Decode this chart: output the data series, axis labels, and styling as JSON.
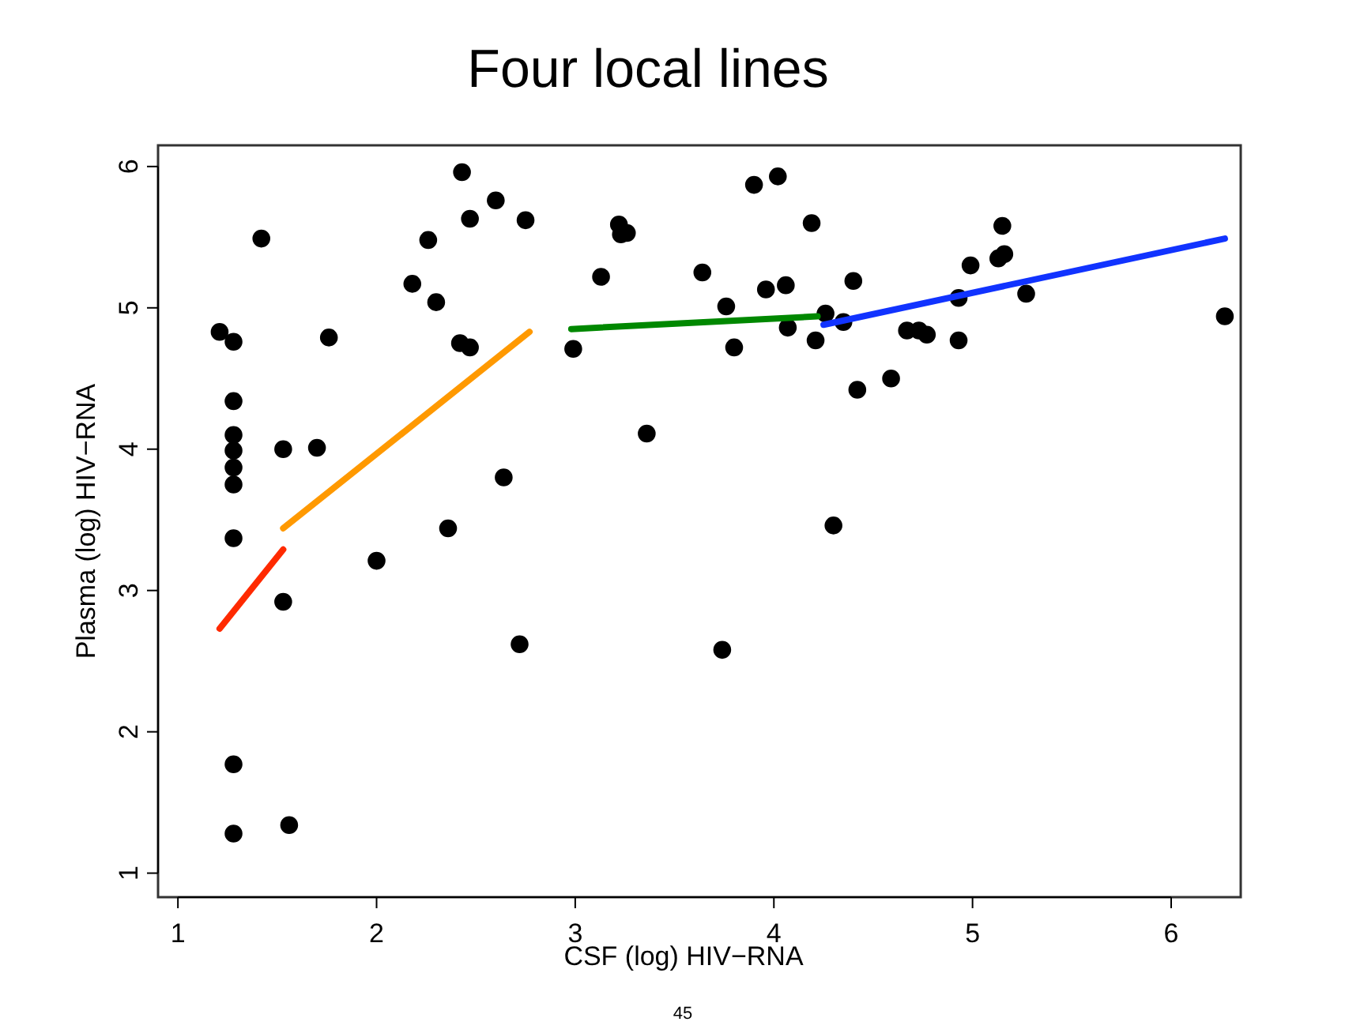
{
  "chart_data": {
    "type": "scatter",
    "title": "Four local lines",
    "xlabel": "CSF (log) HIV−RNA",
    "ylabel": "Plasma (log) HIV−RNA",
    "annotations": [
      "45"
    ],
    "xlim": [
      0.9,
      6.35
    ],
    "ylim": [
      0.83,
      6.15
    ],
    "xticks": [
      1,
      2,
      3,
      4,
      5,
      6
    ],
    "yticks": [
      1,
      2,
      3,
      4,
      5,
      6
    ],
    "grid": false,
    "series": [
      {
        "marker": "circle",
        "color": "#000000",
        "x": [
          1.21,
          1.28,
          1.28,
          1.28,
          1.28,
          1.28,
          1.28,
          1.28,
          1.28,
          1.28,
          1.42,
          1.53,
          1.53,
          1.56,
          1.7,
          1.76,
          2.0,
          2.18,
          2.26,
          2.3,
          2.36,
          2.43,
          2.42,
          2.47,
          2.47,
          2.6,
          2.64,
          2.72,
          2.75,
          2.99,
          3.13,
          3.22,
          3.23,
          3.26,
          3.36,
          3.64,
          3.74,
          3.76,
          3.8,
          3.9,
          3.96,
          4.02,
          4.06,
          4.07,
          4.19,
          4.21,
          4.26,
          4.3,
          4.35,
          4.4,
          4.42,
          4.59,
          4.67,
          4.73,
          4.77,
          4.93,
          4.93,
          4.99,
          5.13,
          5.16,
          5.15,
          5.27,
          6.27
        ],
        "values": [
          4.83,
          4.76,
          4.34,
          4.1,
          3.99,
          3.87,
          3.75,
          3.37,
          1.77,
          1.28,
          5.49,
          4.0,
          2.92,
          1.34,
          4.01,
          4.79,
          3.21,
          5.17,
          5.48,
          5.04,
          3.44,
          5.96,
          4.75,
          4.72,
          5.63,
          5.76,
          3.8,
          2.62,
          5.62,
          4.71,
          5.22,
          5.59,
          5.52,
          5.53,
          4.11,
          5.25,
          2.58,
          5.01,
          4.72,
          5.87,
          5.13,
          5.93,
          5.16,
          4.86,
          5.6,
          4.77,
          4.96,
          3.46,
          4.9,
          5.19,
          4.42,
          4.5,
          4.84,
          4.84,
          4.81,
          4.77,
          5.07,
          5.3,
          5.35,
          5.38,
          5.58,
          5.1,
          4.94
        ]
      },
      {
        "type": "line",
        "color": "#ff2a00",
        "x": [
          1.21,
          1.53
        ],
        "values": [
          2.73,
          3.29
        ]
      },
      {
        "type": "line",
        "color": "#ff9900",
        "x": [
          1.53,
          2.77
        ],
        "values": [
          3.44,
          4.83
        ]
      },
      {
        "type": "line",
        "color": "#008800",
        "x": [
          2.98,
          4.22
        ],
        "values": [
          4.85,
          4.94
        ]
      },
      {
        "type": "line",
        "color": "#1133ff",
        "x": [
          4.25,
          6.27
        ],
        "values": [
          4.88,
          5.49
        ]
      }
    ]
  }
}
